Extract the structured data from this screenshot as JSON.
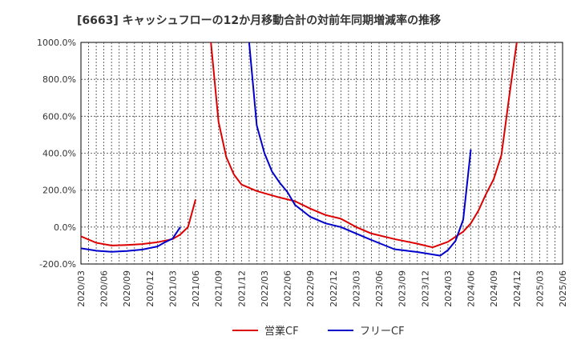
{
  "chart_data": {
    "type": "line",
    "title": "[6663]  キャッシュフローの12か月移動合計の対前年同期増減率の推移",
    "xlabel": "",
    "ylabel": "",
    "ylim": [
      -200,
      1000
    ],
    "yticks": [
      -200,
      0,
      200,
      400,
      600,
      800,
      1000
    ],
    "ytick_labels": [
      "-200.0%",
      "0.0%",
      "200.0%",
      "400.0%",
      "600.0%",
      "800.0%",
      "1000.0%"
    ],
    "x_tick_labels": [
      "2020/03",
      "2020/06",
      "2020/09",
      "2020/12",
      "2021/03",
      "2021/06",
      "2021/09",
      "2021/12",
      "2022/03",
      "2022/06",
      "2022/09",
      "2022/12",
      "2023/03",
      "2023/06",
      "2023/09",
      "2023/12",
      "2024/03",
      "2024/06",
      "2024/09",
      "2024/12",
      "2025/03",
      "2025/06"
    ],
    "x_start": "2020/03",
    "x_end": "2025/06",
    "grid": true,
    "legend_position": "bottom-center",
    "series": [
      {
        "name": "営業CF",
        "color": "#dd0000",
        "segments": [
          [
            [
              "2020/03",
              -50
            ],
            [
              "2020/05",
              -85
            ],
            [
              "2020/07",
              -100
            ],
            [
              "2020/09",
              -97
            ],
            [
              "2020/11",
              -92
            ],
            [
              "2021/01",
              -82
            ],
            [
              "2021/03",
              -65
            ],
            [
              "2021/04",
              -40
            ],
            [
              "2021/05",
              0
            ],
            [
              "2021/06",
              150
            ]
          ],
          [
            [
              "2021/08",
              1000
            ],
            [
              "2021/09",
              570
            ],
            [
              "2021/10",
              380
            ],
            [
              "2021/11",
              285
            ],
            [
              "2021/12",
              230
            ],
            [
              "2022/02",
              195
            ],
            [
              "2022/05",
              160
            ],
            [
              "2022/07",
              140
            ],
            [
              "2022/09",
              100
            ],
            [
              "2022/11",
              65
            ],
            [
              "2023/01",
              45
            ],
            [
              "2023/03",
              0
            ],
            [
              "2023/05",
              -35
            ],
            [
              "2023/08",
              -65
            ],
            [
              "2023/11",
              -90
            ],
            [
              "2024/01",
              -110
            ],
            [
              "2024/03",
              -80
            ],
            [
              "2024/05",
              -25
            ],
            [
              "2024/06",
              20
            ],
            [
              "2024/07",
              90
            ],
            [
              "2024/08",
              180
            ],
            [
              "2024/09",
              260
            ],
            [
              "2024/10",
              390
            ],
            [
              "2024/11",
              700
            ],
            [
              "2024/12",
              1000
            ]
          ]
        ]
      },
      {
        "name": "フリーCF",
        "color": "#0000cc",
        "segments": [
          [
            [
              "2020/03",
              -115
            ],
            [
              "2020/05",
              -128
            ],
            [
              "2020/07",
              -134
            ],
            [
              "2020/09",
              -130
            ],
            [
              "2020/11",
              -122
            ],
            [
              "2021/01",
              -105
            ],
            [
              "2021/02",
              -82
            ],
            [
              "2021/03",
              -62
            ],
            [
              "2021/04",
              0
            ]
          ],
          [
            [
              "2022/01",
              1000
            ],
            [
              "2022/02",
              550
            ],
            [
              "2022/03",
              400
            ],
            [
              "2022/04",
              300
            ],
            [
              "2022/05",
              240
            ],
            [
              "2022/06",
              190
            ],
            [
              "2022/07",
              120
            ],
            [
              "2022/09",
              55
            ],
            [
              "2022/11",
              20
            ],
            [
              "2023/01",
              0
            ],
            [
              "2023/03",
              -35
            ],
            [
              "2023/05",
              -70
            ],
            [
              "2023/08",
              -120
            ],
            [
              "2023/11",
              -135
            ],
            [
              "2024/02",
              -155
            ],
            [
              "2024/03",
              -125
            ],
            [
              "2024/04",
              -75
            ],
            [
              "2024/05",
              40
            ],
            [
              "2024/06",
              420
            ]
          ]
        ]
      }
    ]
  }
}
